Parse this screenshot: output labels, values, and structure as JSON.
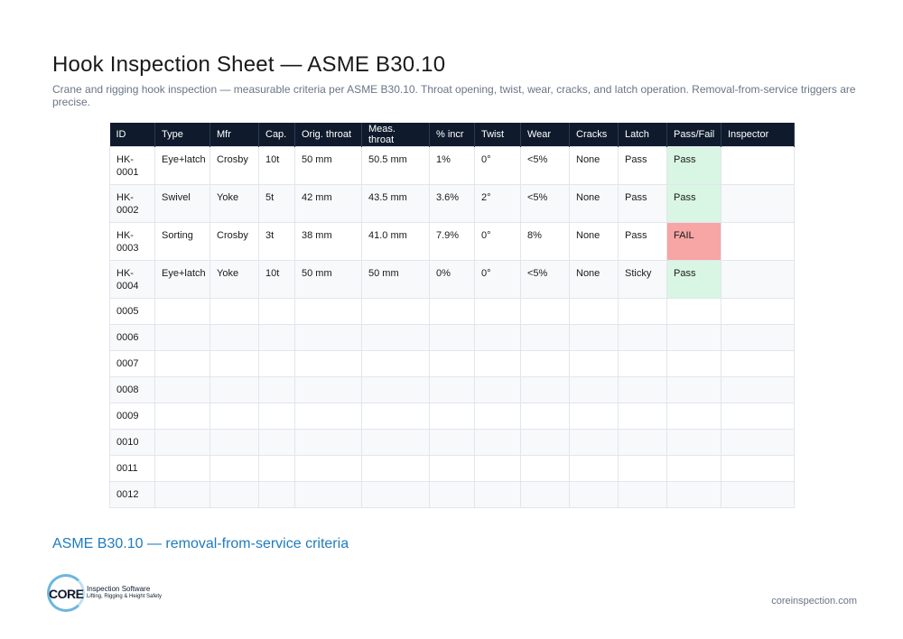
{
  "title": "Hook Inspection Sheet — ASME B30.10",
  "subtitle": "Crane and rigging hook inspection — measurable criteria per ASME B30.10. Throat opening, twist, wear, cracks, and latch operation. Removal-from-service triggers are precise.",
  "table": {
    "headers": [
      "ID",
      "Type",
      "Mfr",
      "Cap.",
      "Orig. throat",
      "Meas. throat",
      "% incr",
      "Twist",
      "Wear",
      "Cracks",
      "Latch",
      "Pass/Fail",
      "Inspector"
    ],
    "rows": [
      [
        "HK-0001",
        "Eye+latch",
        "Crosby",
        "10t",
        "50 mm",
        "50.5 mm",
        "1%",
        "0°",
        "<5%",
        "None",
        "Pass",
        "Pass",
        ""
      ],
      [
        "HK-0002",
        "Swivel",
        "Yoke",
        "5t",
        "42 mm",
        "43.5 mm",
        "3.6%",
        "2°",
        "<5%",
        "None",
        "Pass",
        "Pass",
        ""
      ],
      [
        "HK-0003",
        "Sorting",
        "Crosby",
        "3t",
        "38 mm",
        "41.0 mm",
        "7.9%",
        "0°",
        "8%",
        "None",
        "Pass",
        "FAIL",
        ""
      ],
      [
        "HK-0004",
        "Eye+latch",
        "Yoke",
        "10t",
        "50 mm",
        "50 mm",
        "0%",
        "0°",
        "<5%",
        "None",
        "Sticky",
        "Pass",
        ""
      ]
    ],
    "blank_ids": [
      "0005",
      "0006",
      "0007",
      "0008",
      "0009",
      "0010",
      "0011",
      "0012"
    ]
  },
  "section_title": "ASME B30.10 — removal-from-service criteria",
  "logo": {
    "word": "CORE",
    "line1": "Inspection Software",
    "line2": "Lifting, Rigging & Height Safety"
  },
  "footer_url": "coreinspection.com",
  "colors": {
    "header_bg": "#0f1b2d",
    "pass_bg": "#d9f5e3",
    "fail_bg": "#f7a5a5",
    "section_title": "#1f7bbf"
  }
}
